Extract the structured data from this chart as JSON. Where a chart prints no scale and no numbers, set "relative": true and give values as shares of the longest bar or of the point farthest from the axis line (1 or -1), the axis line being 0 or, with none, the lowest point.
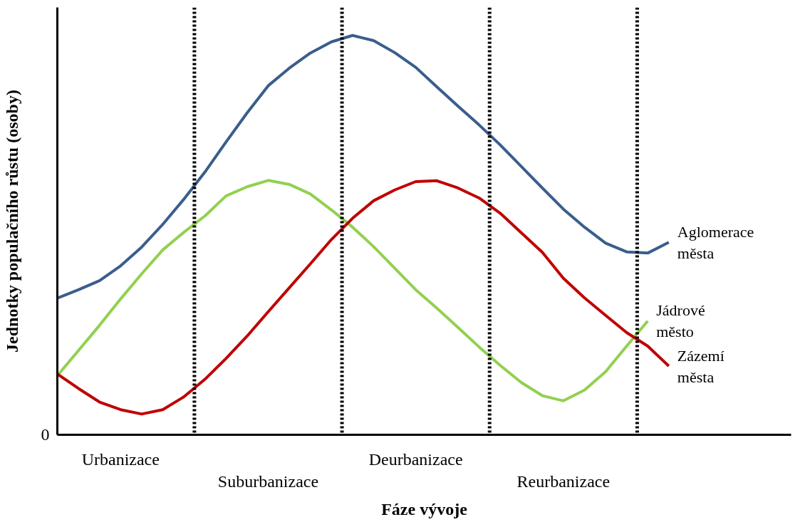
{
  "chart_data": {
    "type": "line",
    "relative": true,
    "xlabel": "Fáze vývoje",
    "ylabel": "Jednotky populačního růstu (osoby)",
    "grid": false,
    "legend": false,
    "marker": "none",
    "line_style": "solid",
    "annotations": [
      "0"
    ],
    "categories": [
      null,
      null,
      null,
      "Urbanizace",
      null,
      null,
      null,
      null,
      null,
      null,
      "Suburbanizace",
      null,
      null,
      null,
      null,
      null,
      null,
      "Deurbanizace",
      null,
      null,
      null,
      null,
      null,
      null,
      "Reurbanizace",
      null,
      null,
      null,
      null,
      null
    ],
    "series": [
      {
        "name": "Aglomerace\nměsta",
        "color": "#3a5e8c",
        "values": [
          0.342,
          0.363,
          0.386,
          0.423,
          0.47,
          0.527,
          0.59,
          0.658,
          0.733,
          0.806,
          0.874,
          0.918,
          0.956,
          0.984,
          1.0,
          0.987,
          0.957,
          0.92,
          0.871,
          0.823,
          0.776,
          0.726,
          0.672,
          0.618,
          0.565,
          0.52,
          0.48,
          0.458,
          0.455,
          0.482
        ]
      },
      {
        "name": "Jádrové\nměsto",
        "color": "#92d050",
        "values": [
          0.148,
          0.211,
          0.274,
          0.34,
          0.403,
          0.463,
          0.507,
          0.548,
          0.598,
          0.621,
          0.637,
          0.627,
          0.603,
          0.563,
          0.52,
          0.471,
          0.417,
          0.363,
          0.317,
          0.269,
          0.22,
          0.174,
          0.131,
          0.098,
          0.085,
          0.112,
          0.158,
          0.222,
          0.285,
          null
        ]
      },
      {
        "name": "Zázemí\nměsta",
        "color": "#c00000",
        "values": [
          0.152,
          0.116,
          0.082,
          0.063,
          0.052,
          0.063,
          0.095,
          0.139,
          0.191,
          0.247,
          0.308,
          0.368,
          0.428,
          0.489,
          0.542,
          0.586,
          0.613,
          0.634,
          0.636,
          0.618,
          0.593,
          0.555,
          0.506,
          0.457,
          0.392,
          0.343,
          0.299,
          0.256,
          0.222,
          0.172
        ]
      }
    ]
  }
}
